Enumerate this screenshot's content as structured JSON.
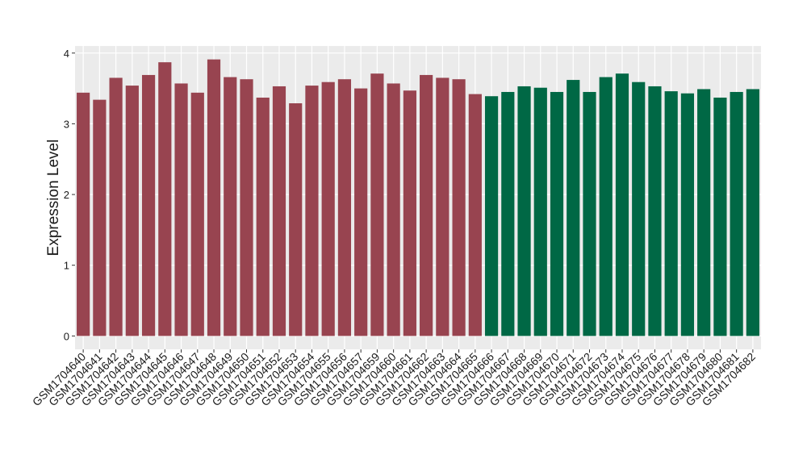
{
  "chart_data": {
    "type": "bar",
    "y_label": "Expression Level",
    "categories": [
      "GSM1704640",
      "GSM1704641",
      "GSM1704642",
      "GSM1704643",
      "GSM1704644",
      "GSM1704645",
      "GSM1704646",
      "GSM1704647",
      "GSM1704648",
      "GSM1704649",
      "GSM1704650",
      "GSM1704651",
      "GSM1704652",
      "GSM1704653",
      "GSM1704654",
      "GSM1704655",
      "GSM1704656",
      "GSM1704657",
      "GSM1704659",
      "GSM1704660",
      "GSM1704661",
      "GSM1704662",
      "GSM1704663",
      "GSM1704664",
      "GSM1704665",
      "GSM1704666",
      "GSM1704667",
      "GSM1704668",
      "GSM1704669",
      "GSM1704670",
      "GSM1704671",
      "GSM1704672",
      "GSM1704673",
      "GSM1704674",
      "GSM1704675",
      "GSM1704676",
      "GSM1704677",
      "GSM1704678",
      "GSM1704679",
      "GSM1704680",
      "GSM1704681",
      "GSM1704682"
    ],
    "values": [
      3.44,
      3.34,
      3.65,
      3.54,
      3.69,
      3.87,
      3.57,
      3.44,
      3.91,
      3.66,
      3.63,
      3.37,
      3.53,
      3.29,
      3.54,
      3.59,
      3.63,
      3.5,
      3.71,
      3.57,
      3.47,
      3.69,
      3.65,
      3.63,
      3.42,
      3.39,
      3.45,
      3.53,
      3.51,
      3.45,
      3.62,
      3.45,
      3.66,
      3.71,
      3.59,
      3.53,
      3.46,
      3.43,
      3.49,
      3.37,
      3.45,
      3.49
    ],
    "colors": [
      "#984450",
      "#984450",
      "#984450",
      "#984450",
      "#984450",
      "#984450",
      "#984450",
      "#984450",
      "#984450",
      "#984450",
      "#984450",
      "#984450",
      "#984450",
      "#984450",
      "#984450",
      "#984450",
      "#984450",
      "#984450",
      "#984450",
      "#984450",
      "#984450",
      "#984450",
      "#984450",
      "#984450",
      "#984450",
      "#006845",
      "#006845",
      "#006845",
      "#006845",
      "#006845",
      "#006845",
      "#006845",
      "#006845",
      "#006845",
      "#006845",
      "#006845",
      "#006845",
      "#006845",
      "#006845",
      "#006845",
      "#006845",
      "#006845"
    ],
    "ylim": [
      -0.19,
      4.1
    ],
    "yticks": [
      0,
      1,
      2,
      3,
      4
    ],
    "grid": true
  }
}
